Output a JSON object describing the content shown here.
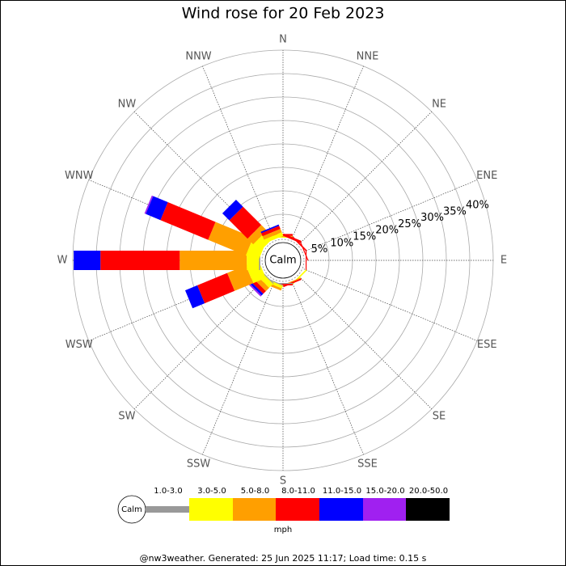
{
  "chart_data": {
    "type": "windrose",
    "title": "Wind rose for 20 Feb 2023",
    "categories": [
      "N",
      "NNE",
      "NE",
      "ENE",
      "E",
      "ESE",
      "SE",
      "SSE",
      "S",
      "SSW",
      "SW",
      "WSW",
      "W",
      "WNW",
      "NW",
      "NNW"
    ],
    "calm_label": "Calm",
    "series": [
      {
        "name": "1.0-3.0",
        "color": "#999999",
        "values": [
          0,
          0,
          0,
          0,
          0,
          0,
          0,
          0,
          0.2,
          0.2,
          0.2,
          0,
          0.3,
          0,
          0,
          0
        ]
      },
      {
        "name": "3.0-5.0",
        "color": "#ffff00",
        "values": [
          0.2,
          0,
          0,
          0,
          0,
          0,
          0.3,
          0,
          0,
          0.6,
          1.2,
          2.9,
          2.6,
          2.9,
          2.1,
          0.8
        ]
      },
      {
        "name": "5.0-8.0",
        "color": "#ff9f00",
        "values": [
          0.2,
          0,
          0,
          0,
          0,
          0,
          0,
          0.2,
          0,
          0.5,
          1.0,
          4.3,
          14.3,
          8.7,
          1.7,
          0.8
        ]
      },
      {
        "name": "8.0-11.0",
        "color": "#ff0000",
        "values": [
          0.4,
          0.5,
          0.3,
          0.2,
          0.2,
          0,
          0,
          0.3,
          0.3,
          0,
          0.8,
          6.9,
          16.9,
          11.0,
          5.5,
          0.7
        ]
      },
      {
        "name": "11.0-15.0",
        "color": "#0000ff",
        "values": [
          0,
          0,
          0,
          0,
          0,
          0,
          0,
          0,
          0,
          0,
          0.5,
          2.8,
          5.7,
          3.4,
          2.1,
          0.3
        ]
      },
      {
        "name": "15.0-20.0",
        "color": "#a020f0",
        "values": [
          0,
          0,
          0,
          0,
          0,
          0,
          0,
          0,
          0,
          0,
          0.3,
          0,
          0,
          0.3,
          0,
          0
        ]
      },
      {
        "name": "20.0-50.0",
        "color": "#000000",
        "values": [
          0,
          0,
          0,
          0,
          0,
          0,
          0,
          0,
          0,
          0,
          0,
          0,
          0,
          0,
          0,
          0
        ]
      }
    ],
    "rlim": [
      0,
      40
    ],
    "rticks": [
      {
        "value": 5,
        "label": "5%"
      },
      {
        "value": 10,
        "label": "10%"
      },
      {
        "value": 15,
        "label": "15%"
      },
      {
        "value": 20,
        "label": "20%"
      },
      {
        "value": 25,
        "label": "25%"
      },
      {
        "value": 30,
        "label": "30%"
      },
      {
        "value": 35,
        "label": "35%"
      },
      {
        "value": 40,
        "label": "40%"
      }
    ],
    "units": "mph",
    "footer": "@nw3weather. Generated: 25 Jun 2025 11:17; Load time: 0.15 s"
  }
}
